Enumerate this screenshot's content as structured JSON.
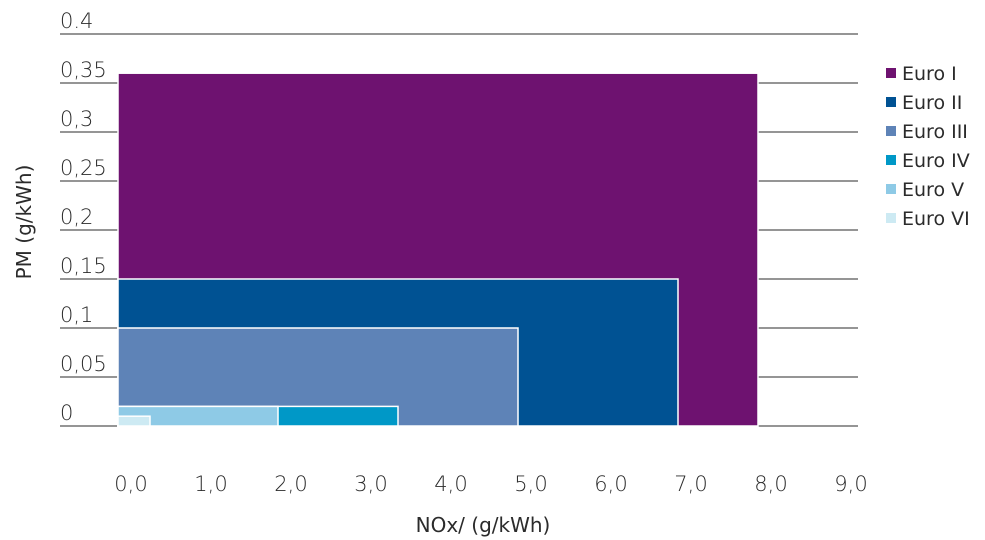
{
  "chart_data": {
    "type": "bar",
    "title": "",
    "xlabel": "NOx/ (g/kWh)",
    "ylabel": "PM (g/kWh)",
    "xlim": [
      0,
      9
    ],
    "ylim": [
      0,
      0.4
    ],
    "x_tick_labels": [
      "0,0",
      "1,0",
      "2,0",
      "3,0",
      "4,0",
      "5,0",
      "6,0",
      "7,0",
      "8,0",
      "9,0"
    ],
    "x_tick_values": [
      0,
      1,
      2,
      3,
      4,
      5,
      6,
      7,
      8,
      9
    ],
    "y_tick_labels": [
      "0",
      "0,05",
      "0,1",
      "0,15",
      "0,2",
      "0,25",
      "0,3",
      "0,35",
      "0.4"
    ],
    "y_tick_values": [
      0,
      0.05,
      0.1,
      0.15,
      0.2,
      0.25,
      0.3,
      0.35,
      0.4
    ],
    "grid": "horizontal",
    "legend_position": "right",
    "series": [
      {
        "name": "Euro I",
        "nox": 8.0,
        "pm": 0.36,
        "color": "#6e1270"
      },
      {
        "name": "Euro II",
        "nox": 7.0,
        "pm": 0.15,
        "color": "#005293"
      },
      {
        "name": "Euro III",
        "nox": 5.0,
        "pm": 0.1,
        "color": "#5e83b7"
      },
      {
        "name": "Euro IV",
        "nox": 3.5,
        "pm": 0.02,
        "color": "#0098c7"
      },
      {
        "name": "Euro V",
        "nox": 2.0,
        "pm": 0.02,
        "color": "#8ecae6"
      },
      {
        "name": "Euro VI",
        "nox": 0.4,
        "pm": 0.01,
        "color": "#cdeaf3"
      }
    ]
  }
}
